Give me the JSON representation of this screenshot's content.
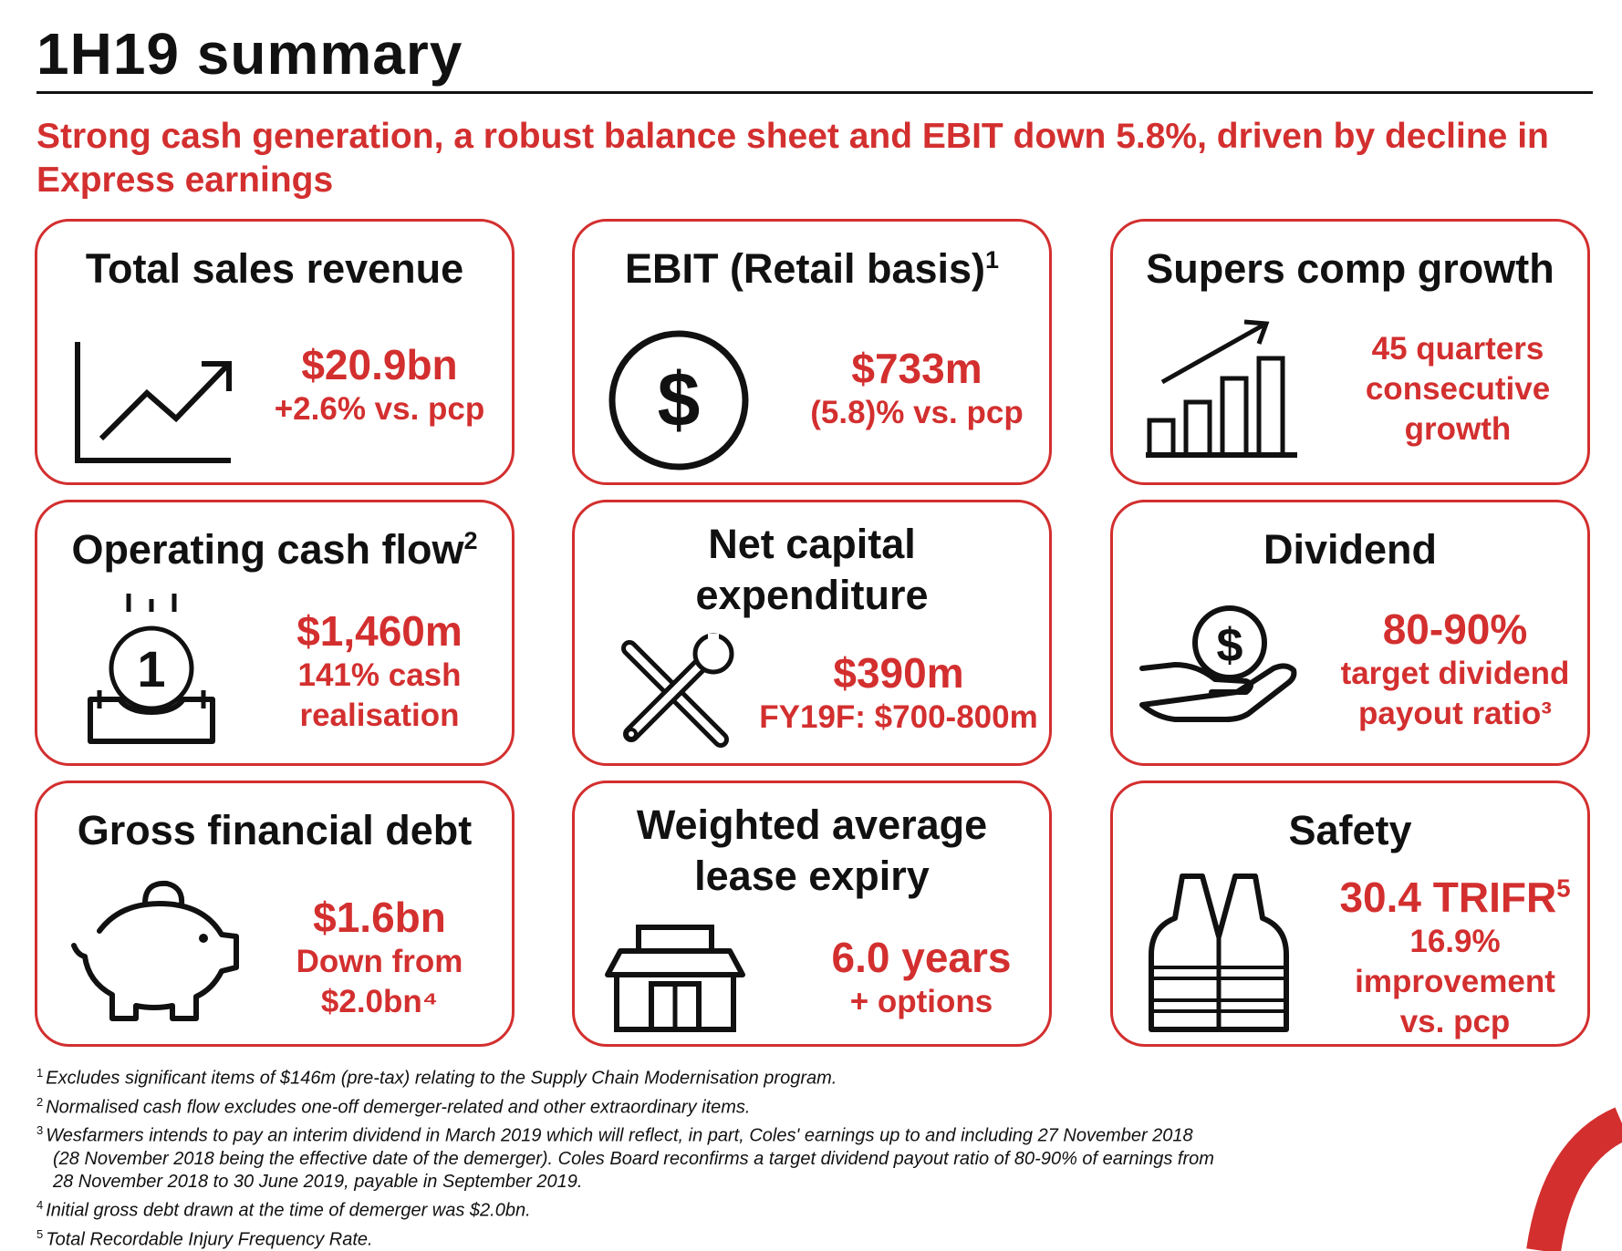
{
  "page": {
    "title": "1H19 summary",
    "subtitle": "Strong cash generation, a robust balance sheet and EBIT down 5.8%, driven by decline in Express earnings",
    "brand_color": "#d32f2f"
  },
  "cards": [
    {
      "title": "Total sales revenue",
      "sup": "",
      "value": "$20.9bn",
      "value_sup": "",
      "lines": [
        "+2.6% vs. pcp"
      ],
      "icon": "trend-up-chart-icon"
    },
    {
      "title": "EBIT (Retail basis)",
      "sup": "1",
      "value": "$733m",
      "value_sup": "",
      "lines": [
        "(5.8)% vs. pcp"
      ],
      "icon": "dollar-coin-icon"
    },
    {
      "title": "Supers comp growth",
      "sup": "",
      "value": "",
      "value_sup": "",
      "lines": [
        "45 quarters",
        "consecutive",
        "growth"
      ],
      "icon": "bar-growth-icon"
    },
    {
      "title": "Operating cash flow",
      "sup": "2",
      "value": "$1,460m",
      "value_sup": "",
      "lines": [
        "141% cash",
        "realisation"
      ],
      "icon": "coin-tray-icon"
    },
    {
      "title": "Net capital expenditure",
      "sup": "",
      "value": "$390m",
      "value_sup": "",
      "lines": [
        "FY19F: $700-800m"
      ],
      "icon": "tools-icon"
    },
    {
      "title": "Dividend",
      "sup": "",
      "value": "80-90%",
      "value_sup": "",
      "lines": [
        "target dividend",
        "payout ratio³"
      ],
      "icon": "hand-coin-icon"
    },
    {
      "title": "Gross financial debt",
      "sup": "",
      "value": "$1.6bn",
      "value_sup": "",
      "lines": [
        "Down from",
        "$2.0bn⁴"
      ],
      "icon": "piggy-bank-icon"
    },
    {
      "title": "Weighted average lease expiry",
      "sup": "",
      "value": "6.0 years",
      "value_sup": "",
      "lines": [
        "+ options"
      ],
      "icon": "store-icon"
    },
    {
      "title": "Safety",
      "sup": "",
      "value": "30.4 TRIFR",
      "value_sup": "5",
      "lines": [
        "16.9%",
        "improvement",
        "vs. pcp"
      ],
      "icon": "safety-vest-icon"
    }
  ],
  "footnotes": [
    {
      "num": "1",
      "text": "Excludes significant items of $146m (pre-tax) relating to the Supply Chain Modernisation program."
    },
    {
      "num": "2",
      "text": "Normalised cash flow excludes one-off demerger-related and other extraordinary items."
    },
    {
      "num": "3",
      "text": "Wesfarmers intends to pay an interim dividend in March 2019 which will reflect, in part, Coles' earnings up to and including 27 November 2018"
    },
    {
      "num": "",
      "text": "(28 November 2018 being the effective date of the demerger). Coles Board reconfirms a target dividend payout ratio of 80-90% of earnings from"
    },
    {
      "num": "",
      "text": "28 November 2018 to 30 June 2019, payable in September 2019."
    },
    {
      "num": "4",
      "text": "Initial gross debt drawn at the time of demerger was $2.0bn."
    },
    {
      "num": "5",
      "text": "Total Recordable Injury Frequency Rate."
    }
  ]
}
